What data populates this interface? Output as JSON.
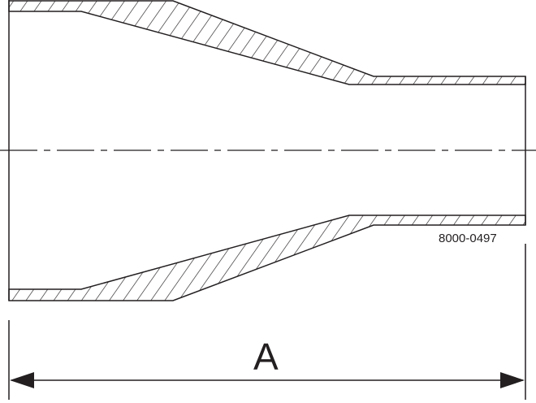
{
  "drawing": {
    "part_number": "8000-0497",
    "dimension_label": "A",
    "line_color": "#231f20"
  }
}
